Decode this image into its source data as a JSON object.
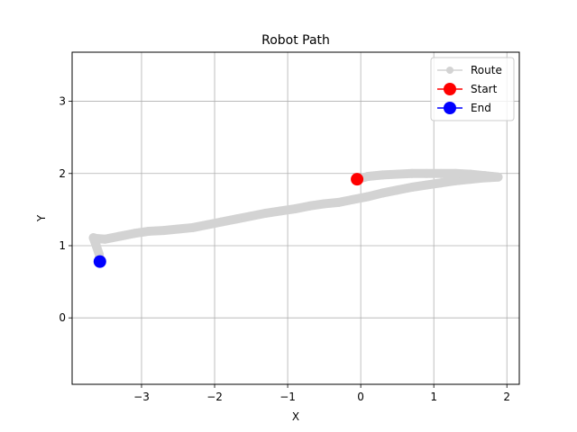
{
  "chart_data": {
    "type": "line",
    "title": "Robot Path",
    "xlabel": "X",
    "ylabel": "Y",
    "xlim": [
      -3.95,
      2.17
    ],
    "ylim": [
      -0.92,
      3.68
    ],
    "xticks": [
      -3,
      -2,
      -1,
      0,
      1,
      2
    ],
    "yticks": [
      0,
      1,
      2,
      3
    ],
    "xtick_labels": [
      "−3",
      "−2",
      "−1",
      "0",
      "1",
      "2"
    ],
    "ytick_labels": [
      "0",
      "1",
      "2",
      "3"
    ],
    "grid": true,
    "legend_position": "top-right",
    "series": [
      {
        "name": "Route",
        "color": "#d3d3d3",
        "marker": "circle",
        "points": [
          [
            -0.05,
            1.92
          ],
          [
            0.1,
            1.96
          ],
          [
            0.3,
            1.98
          ],
          [
            0.5,
            1.99
          ],
          [
            0.7,
            2.0
          ],
          [
            0.9,
            2.0
          ],
          [
            1.1,
            2.0
          ],
          [
            1.3,
            2.0
          ],
          [
            1.5,
            1.99
          ],
          [
            1.7,
            1.97
          ],
          [
            1.88,
            1.95
          ],
          [
            1.7,
            1.94
          ],
          [
            1.5,
            1.92
          ],
          [
            1.3,
            1.9
          ],
          [
            1.1,
            1.87
          ],
          [
            0.9,
            1.84
          ],
          [
            0.7,
            1.81
          ],
          [
            0.5,
            1.77
          ],
          [
            0.3,
            1.73
          ],
          [
            0.1,
            1.68
          ],
          [
            -0.1,
            1.64
          ],
          [
            -0.3,
            1.6
          ],
          [
            -0.5,
            1.58
          ],
          [
            -0.7,
            1.55
          ],
          [
            -0.9,
            1.51
          ],
          [
            -1.1,
            1.48
          ],
          [
            -1.3,
            1.45
          ],
          [
            -1.5,
            1.41
          ],
          [
            -1.7,
            1.37
          ],
          [
            -1.9,
            1.33
          ],
          [
            -2.1,
            1.29
          ],
          [
            -2.3,
            1.25
          ],
          [
            -2.5,
            1.23
          ],
          [
            -2.7,
            1.21
          ],
          [
            -2.9,
            1.2
          ],
          [
            -3.1,
            1.17
          ],
          [
            -3.3,
            1.13
          ],
          [
            -3.5,
            1.09
          ],
          [
            -3.62,
            1.1
          ],
          [
            -3.66,
            1.11
          ],
          [
            -3.62,
            1.0
          ],
          [
            -3.58,
            0.88
          ],
          [
            -3.57,
            0.78
          ]
        ]
      },
      {
        "name": "Start",
        "color": "#ff0000",
        "marker": "circle",
        "points": [
          [
            -0.05,
            1.92
          ]
        ]
      },
      {
        "name": "End",
        "color": "#0000ff",
        "marker": "circle",
        "points": [
          [
            -3.57,
            0.78
          ]
        ]
      }
    ]
  }
}
